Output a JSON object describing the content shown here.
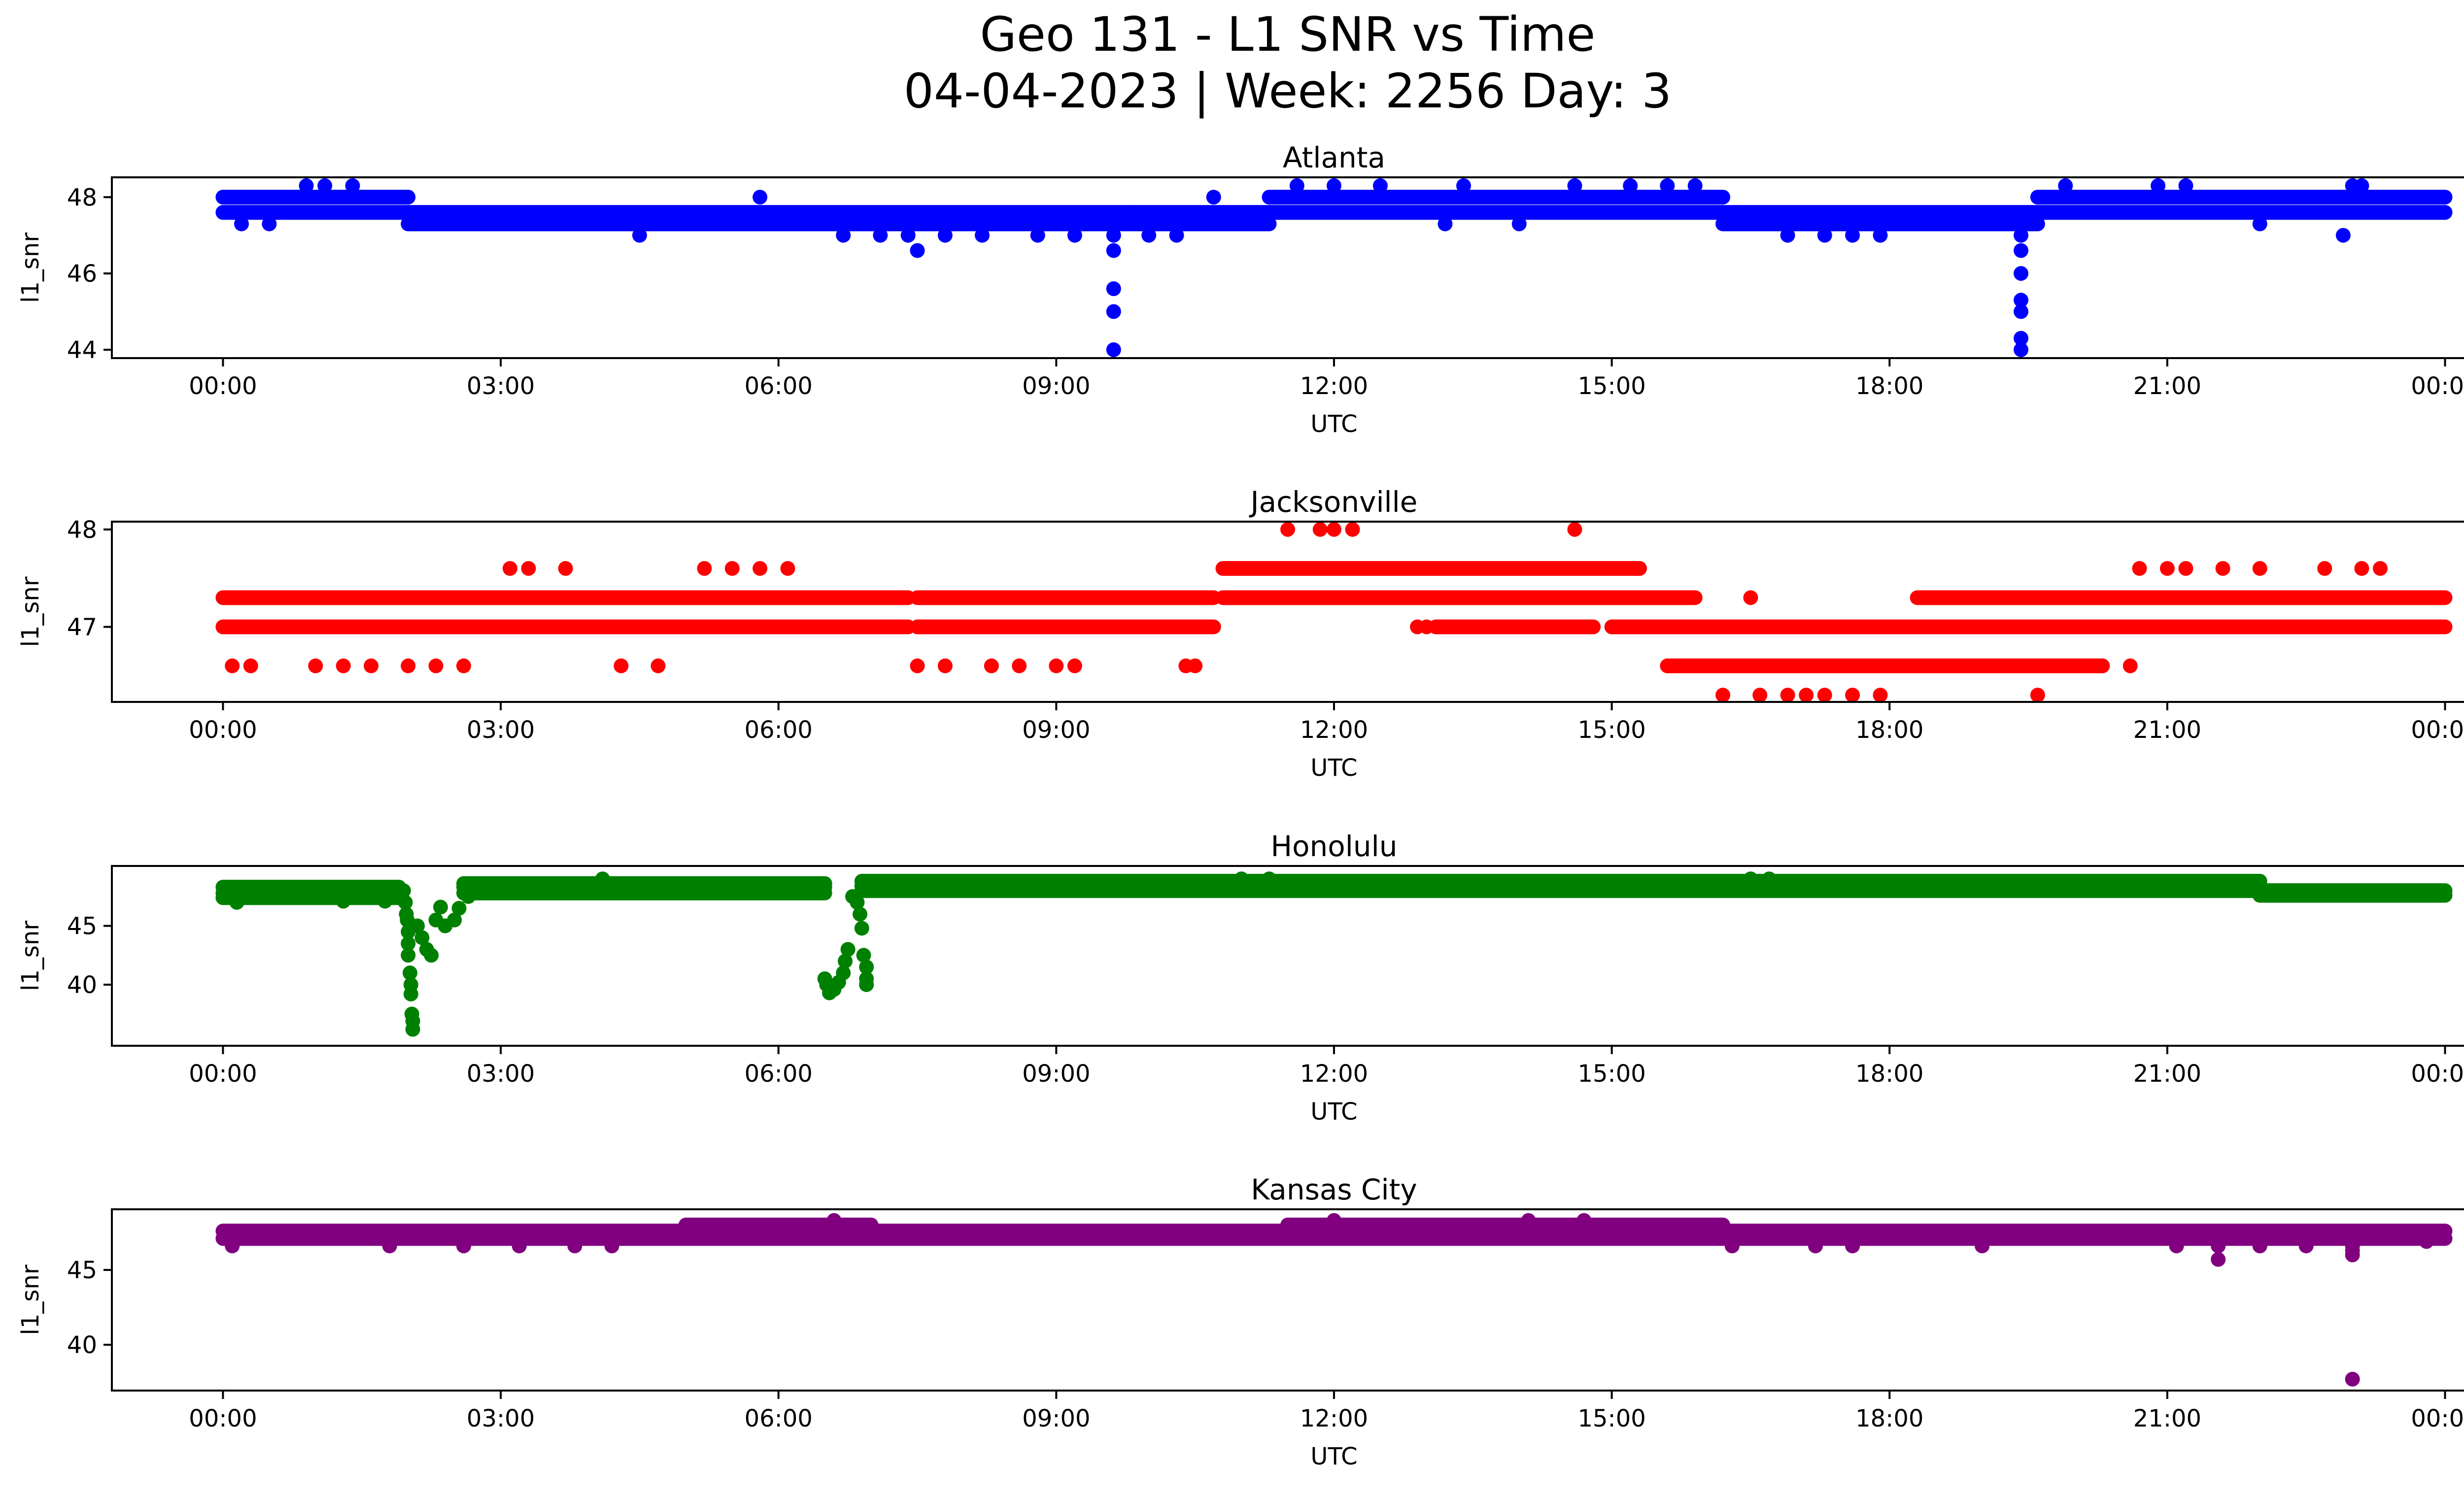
{
  "figure": {
    "title_line1": "Geo 131 - L1 SNR vs Time",
    "title_line2": "04-04-2023 | Week: 2256 Day: 3"
  },
  "chart_data": [
    {
      "type": "scatter",
      "title": "Atlanta",
      "xlabel": "UTC",
      "ylabel": "l1_snr",
      "color": "#0000ff",
      "xlim_hours": [
        -1.2,
        25.2
      ],
      "ylim": [
        43.78,
        48.52
      ],
      "xticks": [
        "00:00",
        "03:00",
        "06:00",
        "09:00",
        "12:00",
        "15:00",
        "18:00",
        "21:00",
        "00:00"
      ],
      "xtick_hours": [
        0,
        3,
        6,
        9,
        12,
        15,
        18,
        21,
        24
      ],
      "yticks": [
        44,
        46,
        48
      ],
      "bands": [
        {
          "from": 0.0,
          "to": 2.0,
          "levels": [
            48.0,
            47.6
          ]
        },
        {
          "from": 2.0,
          "to": 9.8,
          "levels": [
            47.6,
            47.3
          ]
        },
        {
          "from": 9.8,
          "to": 11.3,
          "levels": [
            47.6,
            47.3
          ]
        },
        {
          "from": 11.3,
          "to": 16.2,
          "levels": [
            48.0,
            47.6
          ]
        },
        {
          "from": 16.2,
          "to": 19.6,
          "levels": [
            47.6,
            47.3
          ]
        },
        {
          "from": 19.6,
          "to": 24.0,
          "levels": [
            48.0,
            47.6
          ]
        }
      ],
      "points": [
        [
          0.2,
          47.3
        ],
        [
          0.5,
          47.3
        ],
        [
          0.9,
          48.3
        ],
        [
          1.1,
          48.3
        ],
        [
          1.4,
          48.3
        ],
        [
          4.5,
          47.0
        ],
        [
          5.8,
          48.0
        ],
        [
          6.7,
          47.0
        ],
        [
          7.1,
          47.0
        ],
        [
          7.4,
          47.0
        ],
        [
          7.5,
          46.6
        ],
        [
          7.8,
          47.0
        ],
        [
          8.2,
          47.0
        ],
        [
          8.8,
          47.0
        ],
        [
          9.2,
          47.0
        ],
        [
          9.62,
          46.6
        ],
        [
          9.62,
          45.6
        ],
        [
          9.62,
          45.0
        ],
        [
          9.62,
          44.0
        ],
        [
          9.62,
          47.0
        ],
        [
          10.0,
          47.0
        ],
        [
          10.3,
          47.0
        ],
        [
          10.7,
          48.0
        ],
        [
          11.6,
          48.3
        ],
        [
          12.0,
          48.3
        ],
        [
          12.5,
          48.3
        ],
        [
          13.2,
          47.3
        ],
        [
          13.4,
          48.3
        ],
        [
          14.0,
          47.3
        ],
        [
          14.6,
          48.3
        ],
        [
          15.2,
          48.3
        ],
        [
          15.6,
          48.3
        ],
        [
          15.9,
          48.3
        ],
        [
          16.9,
          47.0
        ],
        [
          17.3,
          47.0
        ],
        [
          17.6,
          47.0
        ],
        [
          17.9,
          47.0
        ],
        [
          19.42,
          47.3
        ],
        [
          19.42,
          47.0
        ],
        [
          19.42,
          46.6
        ],
        [
          19.42,
          46.0
        ],
        [
          19.42,
          45.3
        ],
        [
          19.42,
          45.0
        ],
        [
          19.42,
          44.3
        ],
        [
          19.42,
          44.0
        ],
        [
          19.9,
          48.3
        ],
        [
          20.9,
          48.3
        ],
        [
          21.2,
          48.3
        ],
        [
          22.0,
          47.3
        ],
        [
          22.9,
          47.0
        ],
        [
          23.0,
          48.3
        ],
        [
          23.1,
          48.3
        ]
      ]
    },
    {
      "type": "scatter",
      "title": "Jacksonville",
      "xlabel": "UTC",
      "ylabel": "l1_snr",
      "color": "#ff0000",
      "xlim_hours": [
        -1.2,
        25.2
      ],
      "ylim": [
        46.23,
        48.08
      ],
      "xticks": [
        "00:00",
        "03:00",
        "06:00",
        "09:00",
        "12:00",
        "15:00",
        "18:00",
        "21:00",
        "00:00"
      ],
      "xtick_hours": [
        0,
        3,
        6,
        9,
        12,
        15,
        18,
        21,
        24
      ],
      "yticks": [
        47,
        48
      ],
      "bands": [
        {
          "from": 0.0,
          "to": 7.4,
          "levels": [
            47.3,
            47.0
          ]
        },
        {
          "from": 7.5,
          "to": 10.7,
          "levels": [
            47.3,
            47.0
          ]
        },
        {
          "from": 10.8,
          "to": 14.8,
          "levels": [
            47.6,
            47.3
          ]
        },
        {
          "from": 13.1,
          "to": 14.8,
          "levels": [
            47.0
          ]
        },
        {
          "from": 14.8,
          "to": 15.3,
          "levels": [
            47.6,
            47.3
          ]
        },
        {
          "from": 15.0,
          "to": 15.8,
          "levels": [
            47.0
          ]
        },
        {
          "from": 15.3,
          "to": 15.9,
          "levels": [
            47.3
          ]
        },
        {
          "from": 15.8,
          "to": 24.0,
          "levels": [
            47.0
          ]
        },
        {
          "from": 15.6,
          "to": 20.3,
          "levels": [
            46.6
          ]
        },
        {
          "from": 18.3,
          "to": 24.0,
          "levels": [
            47.3
          ]
        }
      ],
      "points": [
        [
          0.1,
          46.6
        ],
        [
          0.3,
          46.6
        ],
        [
          1.0,
          46.6
        ],
        [
          1.3,
          46.6
        ],
        [
          1.6,
          46.6
        ],
        [
          2.0,
          46.6
        ],
        [
          2.3,
          46.6
        ],
        [
          2.6,
          46.6
        ],
        [
          3.1,
          47.6
        ],
        [
          3.3,
          47.6
        ],
        [
          3.7,
          47.6
        ],
        [
          4.3,
          46.6
        ],
        [
          4.7,
          46.6
        ],
        [
          5.2,
          47.6
        ],
        [
          5.5,
          47.6
        ],
        [
          5.8,
          47.6
        ],
        [
          6.1,
          47.6
        ],
        [
          7.5,
          46.6
        ],
        [
          7.8,
          46.6
        ],
        [
          8.3,
          46.6
        ],
        [
          8.6,
          46.6
        ],
        [
          9.0,
          46.6
        ],
        [
          9.2,
          46.6
        ],
        [
          10.4,
          46.6
        ],
        [
          10.5,
          46.6
        ],
        [
          11.5,
          48.0
        ],
        [
          11.85,
          48.0
        ],
        [
          12.0,
          48.0
        ],
        [
          12.2,
          48.0
        ],
        [
          14.6,
          48.0
        ],
        [
          12.9,
          47.0
        ],
        [
          13.0,
          47.0
        ],
        [
          16.2,
          46.3
        ],
        [
          16.5,
          47.3
        ],
        [
          16.6,
          46.3
        ],
        [
          16.9,
          46.3
        ],
        [
          17.1,
          46.3
        ],
        [
          17.3,
          46.3
        ],
        [
          17.6,
          46.3
        ],
        [
          17.9,
          46.3
        ],
        [
          19.6,
          46.3
        ],
        [
          20.6,
          46.6
        ],
        [
          20.7,
          47.6
        ],
        [
          21.0,
          47.6
        ],
        [
          21.2,
          47.6
        ],
        [
          21.6,
          47.6
        ],
        [
          22.0,
          47.6
        ],
        [
          22.7,
          47.6
        ],
        [
          23.1,
          47.6
        ],
        [
          23.3,
          47.6
        ]
      ]
    },
    {
      "type": "scatter",
      "title": "Honolulu",
      "xlabel": "UTC",
      "ylabel": "l1_snr",
      "color": "#008000",
      "xlim_hours": [
        -1.2,
        25.2
      ],
      "ylim": [
        34.8,
        50.1
      ],
      "xticks": [
        "00:00",
        "03:00",
        "06:00",
        "09:00",
        "12:00",
        "15:00",
        "18:00",
        "21:00",
        "00:00"
      ],
      "xtick_hours": [
        0,
        3,
        6,
        9,
        12,
        15,
        18,
        21,
        24
      ],
      "yticks": [
        40,
        45
      ],
      "bands": [
        {
          "from": 0.0,
          "to": 1.9,
          "levels": [
            48.3,
            47.8,
            47.4
          ]
        },
        {
          "from": 2.6,
          "to": 6.5,
          "levels": [
            48.6,
            48.3,
            47.8
          ]
        },
        {
          "from": 6.9,
          "to": 22.0,
          "levels": [
            48.8,
            48.4,
            48.0
          ]
        },
        {
          "from": 22.0,
          "to": 24.0,
          "levels": [
            48.0,
            47.6
          ]
        }
      ],
      "points": [
        [
          0.15,
          47.0
        ],
        [
          1.3,
          47.1
        ],
        [
          1.75,
          47.1
        ],
        [
          1.95,
          48.0
        ],
        [
          1.97,
          47.0
        ],
        [
          1.98,
          46.0
        ],
        [
          1.99,
          45.5
        ],
        [
          2.0,
          44.5
        ],
        [
          2.0,
          43.5
        ],
        [
          2.0,
          42.5
        ],
        [
          2.02,
          41.0
        ],
        [
          2.03,
          40.0
        ],
        [
          2.03,
          39.2
        ],
        [
          2.04,
          37.5
        ],
        [
          2.05,
          36.9
        ],
        [
          2.05,
          36.2
        ],
        [
          2.1,
          45.0
        ],
        [
          2.15,
          44.0
        ],
        [
          2.2,
          43.0
        ],
        [
          2.25,
          42.5
        ],
        [
          2.3,
          45.5
        ],
        [
          2.35,
          46.6
        ],
        [
          2.4,
          45.0
        ],
        [
          2.5,
          45.5
        ],
        [
          2.55,
          46.5
        ],
        [
          2.65,
          47.5
        ],
        [
          6.5,
          40.5
        ],
        [
          6.52,
          40.0
        ],
        [
          6.55,
          39.3
        ],
        [
          6.6,
          39.6
        ],
        [
          6.65,
          40.2
        ],
        [
          6.7,
          41.0
        ],
        [
          6.72,
          42.0
        ],
        [
          6.75,
          43.0
        ],
        [
          6.8,
          47.5
        ],
        [
          6.85,
          47.0
        ],
        [
          6.88,
          46.0
        ],
        [
          6.9,
          44.8
        ],
        [
          6.92,
          42.5
        ],
        [
          6.95,
          41.5
        ],
        [
          6.95,
          40.5
        ],
        [
          6.95,
          40.0
        ],
        [
          4.1,
          49.0
        ],
        [
          11.0,
          49.0
        ],
        [
          11.3,
          49.0
        ],
        [
          16.5,
          49.0
        ],
        [
          16.7,
          49.0
        ]
      ]
    },
    {
      "type": "scatter",
      "title": "Kansas City",
      "xlabel": "UTC",
      "ylabel": "l1_snr",
      "color": "#800080",
      "xlim_hours": [
        -1.2,
        25.2
      ],
      "ylim": [
        36.94,
        49.05
      ],
      "xticks": [
        "00:00",
        "03:00",
        "06:00",
        "09:00",
        "12:00",
        "15:00",
        "18:00",
        "21:00",
        "00:00"
      ],
      "xtick_hours": [
        0,
        3,
        6,
        9,
        12,
        15,
        18,
        21,
        24
      ],
      "yticks": [
        40,
        45
      ],
      "bands": [
        {
          "from": 0.0,
          "to": 24.0,
          "levels": [
            47.6,
            47.1
          ]
        },
        {
          "from": 5.0,
          "to": 7.0,
          "levels": [
            48.0
          ]
        },
        {
          "from": 11.5,
          "to": 16.2,
          "levels": [
            48.0
          ]
        }
      ],
      "points": [
        [
          0.1,
          46.6
        ],
        [
          1.8,
          46.6
        ],
        [
          2.6,
          46.6
        ],
        [
          3.2,
          46.6
        ],
        [
          3.8,
          46.6
        ],
        [
          4.2,
          46.6
        ],
        [
          6.6,
          48.3
        ],
        [
          12.0,
          48.3
        ],
        [
          14.1,
          48.3
        ],
        [
          14.7,
          48.3
        ],
        [
          16.3,
          46.6
        ],
        [
          17.2,
          46.6
        ],
        [
          17.6,
          46.6
        ],
        [
          19.0,
          46.6
        ],
        [
          21.1,
          46.6
        ],
        [
          21.55,
          46.6
        ],
        [
          21.55,
          45.7
        ],
        [
          22.0,
          46.6
        ],
        [
          22.5,
          46.6
        ],
        [
          23.0,
          46.6
        ],
        [
          23.0,
          46.3
        ],
        [
          23.0,
          46.0
        ],
        [
          23.0,
          37.7
        ],
        [
          23.8,
          46.9
        ]
      ]
    }
  ]
}
